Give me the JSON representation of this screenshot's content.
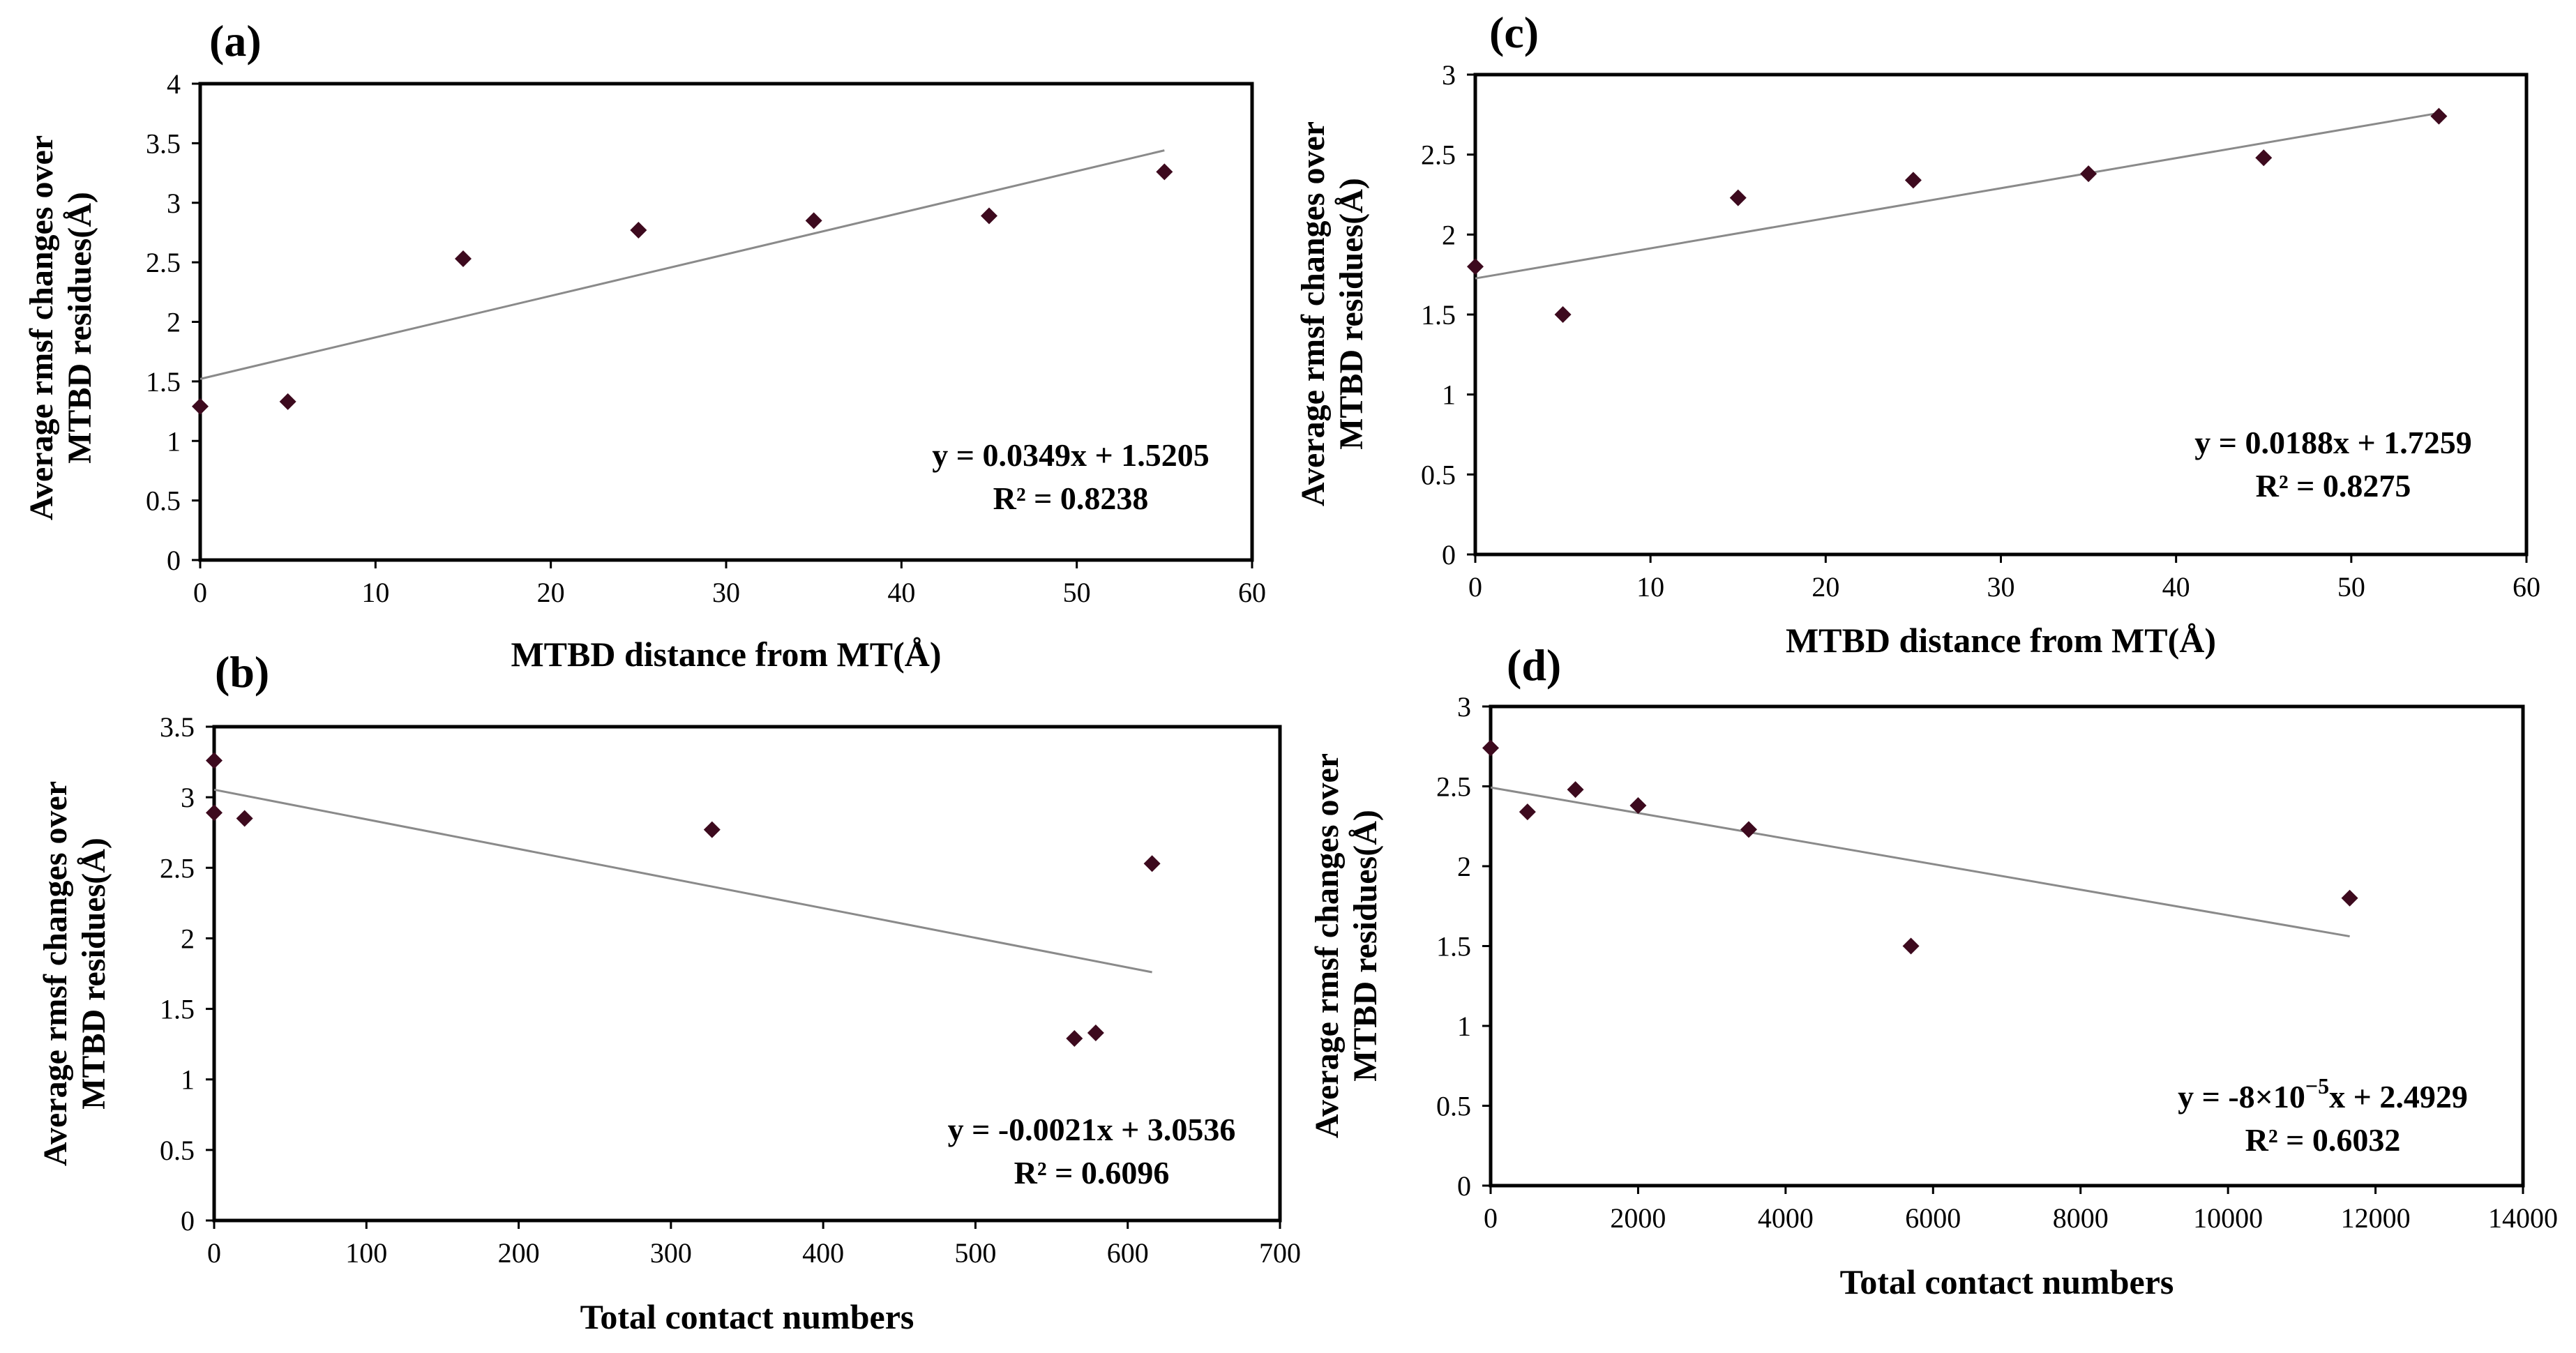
{
  "chart_data": [
    {
      "id": "a",
      "type": "scatter",
      "panel_label": "(a)",
      "xlabel": "MTBD distance from MT(Å)",
      "ylabel": [
        "Average rmsf changes over",
        "MTBD residues(Å)"
      ],
      "xlim": [
        0,
        60
      ],
      "ylim": [
        0,
        4
      ],
      "xticks": [
        0,
        10,
        20,
        30,
        40,
        50,
        60
      ],
      "yticks": [
        0,
        0.5,
        1,
        1.5,
        2,
        2.5,
        3,
        3.5,
        4
      ],
      "points": [
        [
          0,
          1.29
        ],
        [
          5,
          1.33
        ],
        [
          15,
          2.53
        ],
        [
          25,
          2.77
        ],
        [
          35,
          2.85
        ],
        [
          45,
          2.89
        ],
        [
          55,
          3.26
        ]
      ],
      "trendline": {
        "slope": 0.0349,
        "intercept": 1.5205,
        "x_range": [
          0,
          55
        ]
      },
      "equation": "y = 0.0349x + 1.5205",
      "r2": "R² = 0.8238"
    },
    {
      "id": "b",
      "type": "scatter",
      "panel_label": "(b)",
      "xlabel": "Total contact numbers",
      "ylabel": [
        "Average rmsf changes over",
        "MTBD residues(Å)"
      ],
      "xlim": [
        0,
        700
      ],
      "ylim": [
        0,
        3.5
      ],
      "xticks": [
        0,
        100,
        200,
        300,
        400,
        500,
        600,
        700
      ],
      "yticks": [
        0,
        0.5,
        1,
        1.5,
        2,
        2.5,
        3,
        3.5
      ],
      "points": [
        [
          0,
          3.26
        ],
        [
          0,
          2.89
        ],
        [
          20,
          2.85
        ],
        [
          327,
          2.77
        ],
        [
          565,
          1.29
        ],
        [
          579,
          1.33
        ],
        [
          616,
          2.53
        ]
      ],
      "trendline": {
        "slope": -0.0021,
        "intercept": 3.0536,
        "x_range": [
          0,
          616
        ]
      },
      "equation": "y = -0.0021x + 3.0536",
      "r2": "R² = 0.6096"
    },
    {
      "id": "c",
      "type": "scatter",
      "panel_label": "(c)",
      "xlabel": "MTBD distance from MT(Å)",
      "ylabel": [
        "Average rmsf changes over",
        "MTBD residues(Å)"
      ],
      "xlim": [
        0,
        60
      ],
      "ylim": [
        0,
        3
      ],
      "xticks": [
        0,
        10,
        20,
        30,
        40,
        50,
        60
      ],
      "yticks": [
        0,
        0.5,
        1,
        1.5,
        2,
        2.5,
        3
      ],
      "points": [
        [
          0,
          1.8
        ],
        [
          5,
          1.5
        ],
        [
          15,
          2.23
        ],
        [
          25,
          2.34
        ],
        [
          35,
          2.38
        ],
        [
          45,
          2.48
        ],
        [
          55,
          2.74
        ]
      ],
      "trendline": {
        "slope": 0.0188,
        "intercept": 1.7259,
        "x_range": [
          0,
          55
        ]
      },
      "equation": "y = 0.0188x + 1.7259",
      "r2": "R² = 0.8275"
    },
    {
      "id": "d",
      "type": "scatter",
      "panel_label": "(d)",
      "xlabel": "Total contact numbers",
      "ylabel": [
        "Average rmsf changes over",
        "MTBD residues(Å)"
      ],
      "xlim": [
        0,
        14000
      ],
      "ylim": [
        0,
        3
      ],
      "xticks": [
        0,
        2000,
        4000,
        6000,
        8000,
        10000,
        12000,
        14000
      ],
      "yticks": [
        0,
        0.5,
        1,
        1.5,
        2,
        2.5,
        3
      ],
      "points": [
        [
          0,
          2.74
        ],
        [
          500,
          2.34
        ],
        [
          1150,
          2.48
        ],
        [
          2000,
          2.38
        ],
        [
          3500,
          2.23
        ],
        [
          5700,
          1.5
        ],
        [
          11650,
          1.8
        ]
      ],
      "trendline": {
        "slope": -8e-05,
        "intercept": 2.4929,
        "x_range": [
          0,
          11650
        ]
      },
      "equation_prefix": "y = -8×10",
      "equation_exp": "−5",
      "equation_suffix": "x + 2.4929",
      "r2": "R² = 0.6032"
    }
  ]
}
